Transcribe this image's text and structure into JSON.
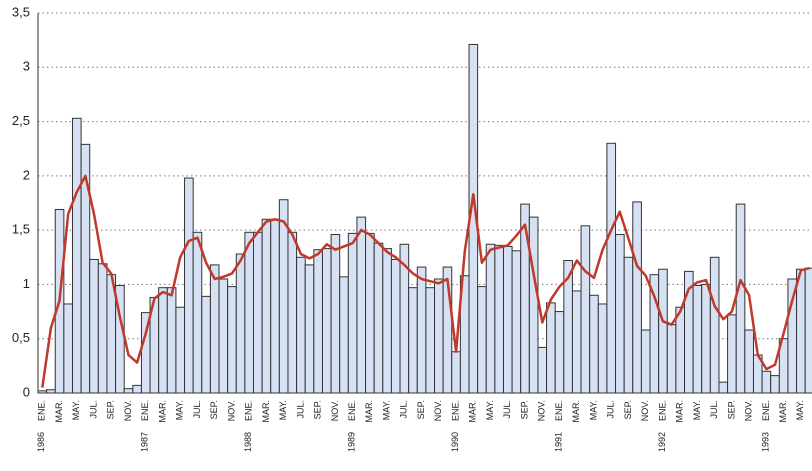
{
  "chart_data": {
    "type": "bar",
    "categories": [
      "ENE.",
      null,
      "MAR.",
      null,
      "MAY.",
      null,
      "JUL.",
      null,
      "SEP.",
      null,
      "NOV.",
      null,
      "ENE.",
      null,
      "MAR.",
      null,
      "MAY.",
      null,
      "JUL.",
      null,
      "SEP.",
      null,
      "NOV.",
      null,
      "ENE.",
      null,
      "MAR.",
      null,
      "MAY.",
      null,
      "JUL.",
      null,
      "SEP.",
      null,
      "NOV.",
      null,
      "ENE.",
      null,
      "MAR.",
      null,
      "MAY.",
      null,
      "JUL.",
      null,
      "SEP.",
      null,
      "NOV.",
      null,
      "ENE.",
      null,
      "MAR.",
      null,
      "MAY.",
      null,
      "JUL.",
      null,
      "SEP.",
      null,
      "NOV.",
      null,
      "ENE.",
      null,
      "MAR.",
      null,
      "MAY.",
      null,
      "JUL.",
      null,
      "SEP.",
      null,
      "NOV.",
      null,
      "ENE.",
      null,
      "MAR.",
      null,
      "MAY.",
      null,
      "JUL.",
      null,
      "SEP.",
      null,
      "NOV.",
      null,
      "ENE.",
      null,
      "MAR.",
      null,
      "MAY.",
      null
    ],
    "years": [
      "1986",
      null,
      null,
      null,
      null,
      null,
      null,
      null,
      null,
      null,
      null,
      null,
      "1987",
      null,
      null,
      null,
      null,
      null,
      null,
      null,
      null,
      null,
      null,
      null,
      "1988",
      null,
      null,
      null,
      null,
      null,
      null,
      null,
      null,
      null,
      null,
      null,
      "1989",
      null,
      null,
      null,
      null,
      null,
      null,
      null,
      null,
      null,
      null,
      null,
      "1990",
      null,
      null,
      null,
      null,
      null,
      null,
      null,
      null,
      null,
      null,
      null,
      "1991",
      null,
      null,
      null,
      null,
      null,
      null,
      null,
      null,
      null,
      null,
      null,
      "1992",
      null,
      null,
      null,
      null,
      null,
      null,
      null,
      null,
      null,
      null,
      null,
      "1993",
      null,
      null,
      null,
      null,
      null
    ],
    "series": [
      {
        "type": "bar",
        "color": "#d6e2f3",
        "values": [
          0.02,
          0.03,
          1.69,
          0.82,
          2.53,
          2.29,
          1.23,
          1.19,
          1.09,
          0.99,
          0.04,
          0.07,
          0.74,
          0.88,
          0.97,
          0.97,
          0.79,
          1.98,
          1.48,
          0.89,
          1.18,
          1.05,
          0.98,
          1.28,
          1.48,
          1.48,
          1.6,
          1.6,
          1.78,
          1.48,
          1.25,
          1.18,
          1.32,
          1.33,
          1.46,
          1.07,
          1.47,
          1.62,
          1.47,
          1.38,
          1.33,
          1.23,
          1.37,
          0.97,
          1.16,
          0.97,
          1.05,
          1.16,
          0.38,
          1.08,
          3.21,
          0.98,
          1.37,
          1.36,
          1.35,
          1.31,
          1.74,
          1.62,
          0.42,
          0.83,
          0.75,
          1.22,
          0.94,
          1.54,
          0.9,
          0.82,
          2.3,
          1.46,
          1.25,
          1.76,
          0.58,
          1.09,
          1.14,
          0.63,
          0.79,
          1.12,
          0.99,
          1.0,
          1.25,
          0.1,
          0.72,
          1.74,
          0.58,
          0.35,
          0.2,
          0.16,
          0.5,
          1.05,
          1.14,
          1.15
        ]
      },
      {
        "type": "line",
        "color": "#c0392b",
        "values": [
          0.05,
          0.6,
          0.85,
          1.65,
          1.85,
          2.0,
          1.65,
          1.2,
          1.1,
          0.7,
          0.35,
          0.28,
          0.55,
          0.87,
          0.93,
          0.9,
          1.25,
          1.4,
          1.43,
          1.2,
          1.05,
          1.07,
          1.1,
          1.22,
          1.38,
          1.48,
          1.58,
          1.6,
          1.58,
          1.46,
          1.28,
          1.24,
          1.28,
          1.37,
          1.32,
          1.35,
          1.38,
          1.5,
          1.46,
          1.38,
          1.3,
          1.25,
          1.18,
          1.1,
          1.05,
          1.03,
          1.01,
          1.05,
          0.38,
          1.3,
          1.83,
          1.2,
          1.32,
          1.34,
          1.36,
          1.45,
          1.55,
          1.1,
          0.65,
          0.86,
          0.98,
          1.06,
          1.22,
          1.12,
          1.06,
          1.32,
          1.5,
          1.67,
          1.42,
          1.17,
          1.08,
          0.89,
          0.66,
          0.63,
          0.75,
          0.96,
          1.02,
          1.04,
          0.8,
          0.68,
          0.75,
          1.04,
          0.9,
          0.35,
          0.22,
          0.26,
          0.55,
          0.85,
          1.13,
          1.15
        ]
      }
    ],
    "ylim": [
      0,
      3.5
    ],
    "yticks": [
      0,
      {
        "value": 0.5,
        "label": "0,5"
      },
      1,
      {
        "value": 1.5,
        "label": "1,5"
      },
      2,
      {
        "value": 2.5,
        "label": "2,5"
      },
      3,
      {
        "value": 3.5,
        "label": "3,5"
      }
    ],
    "grid": true
  }
}
